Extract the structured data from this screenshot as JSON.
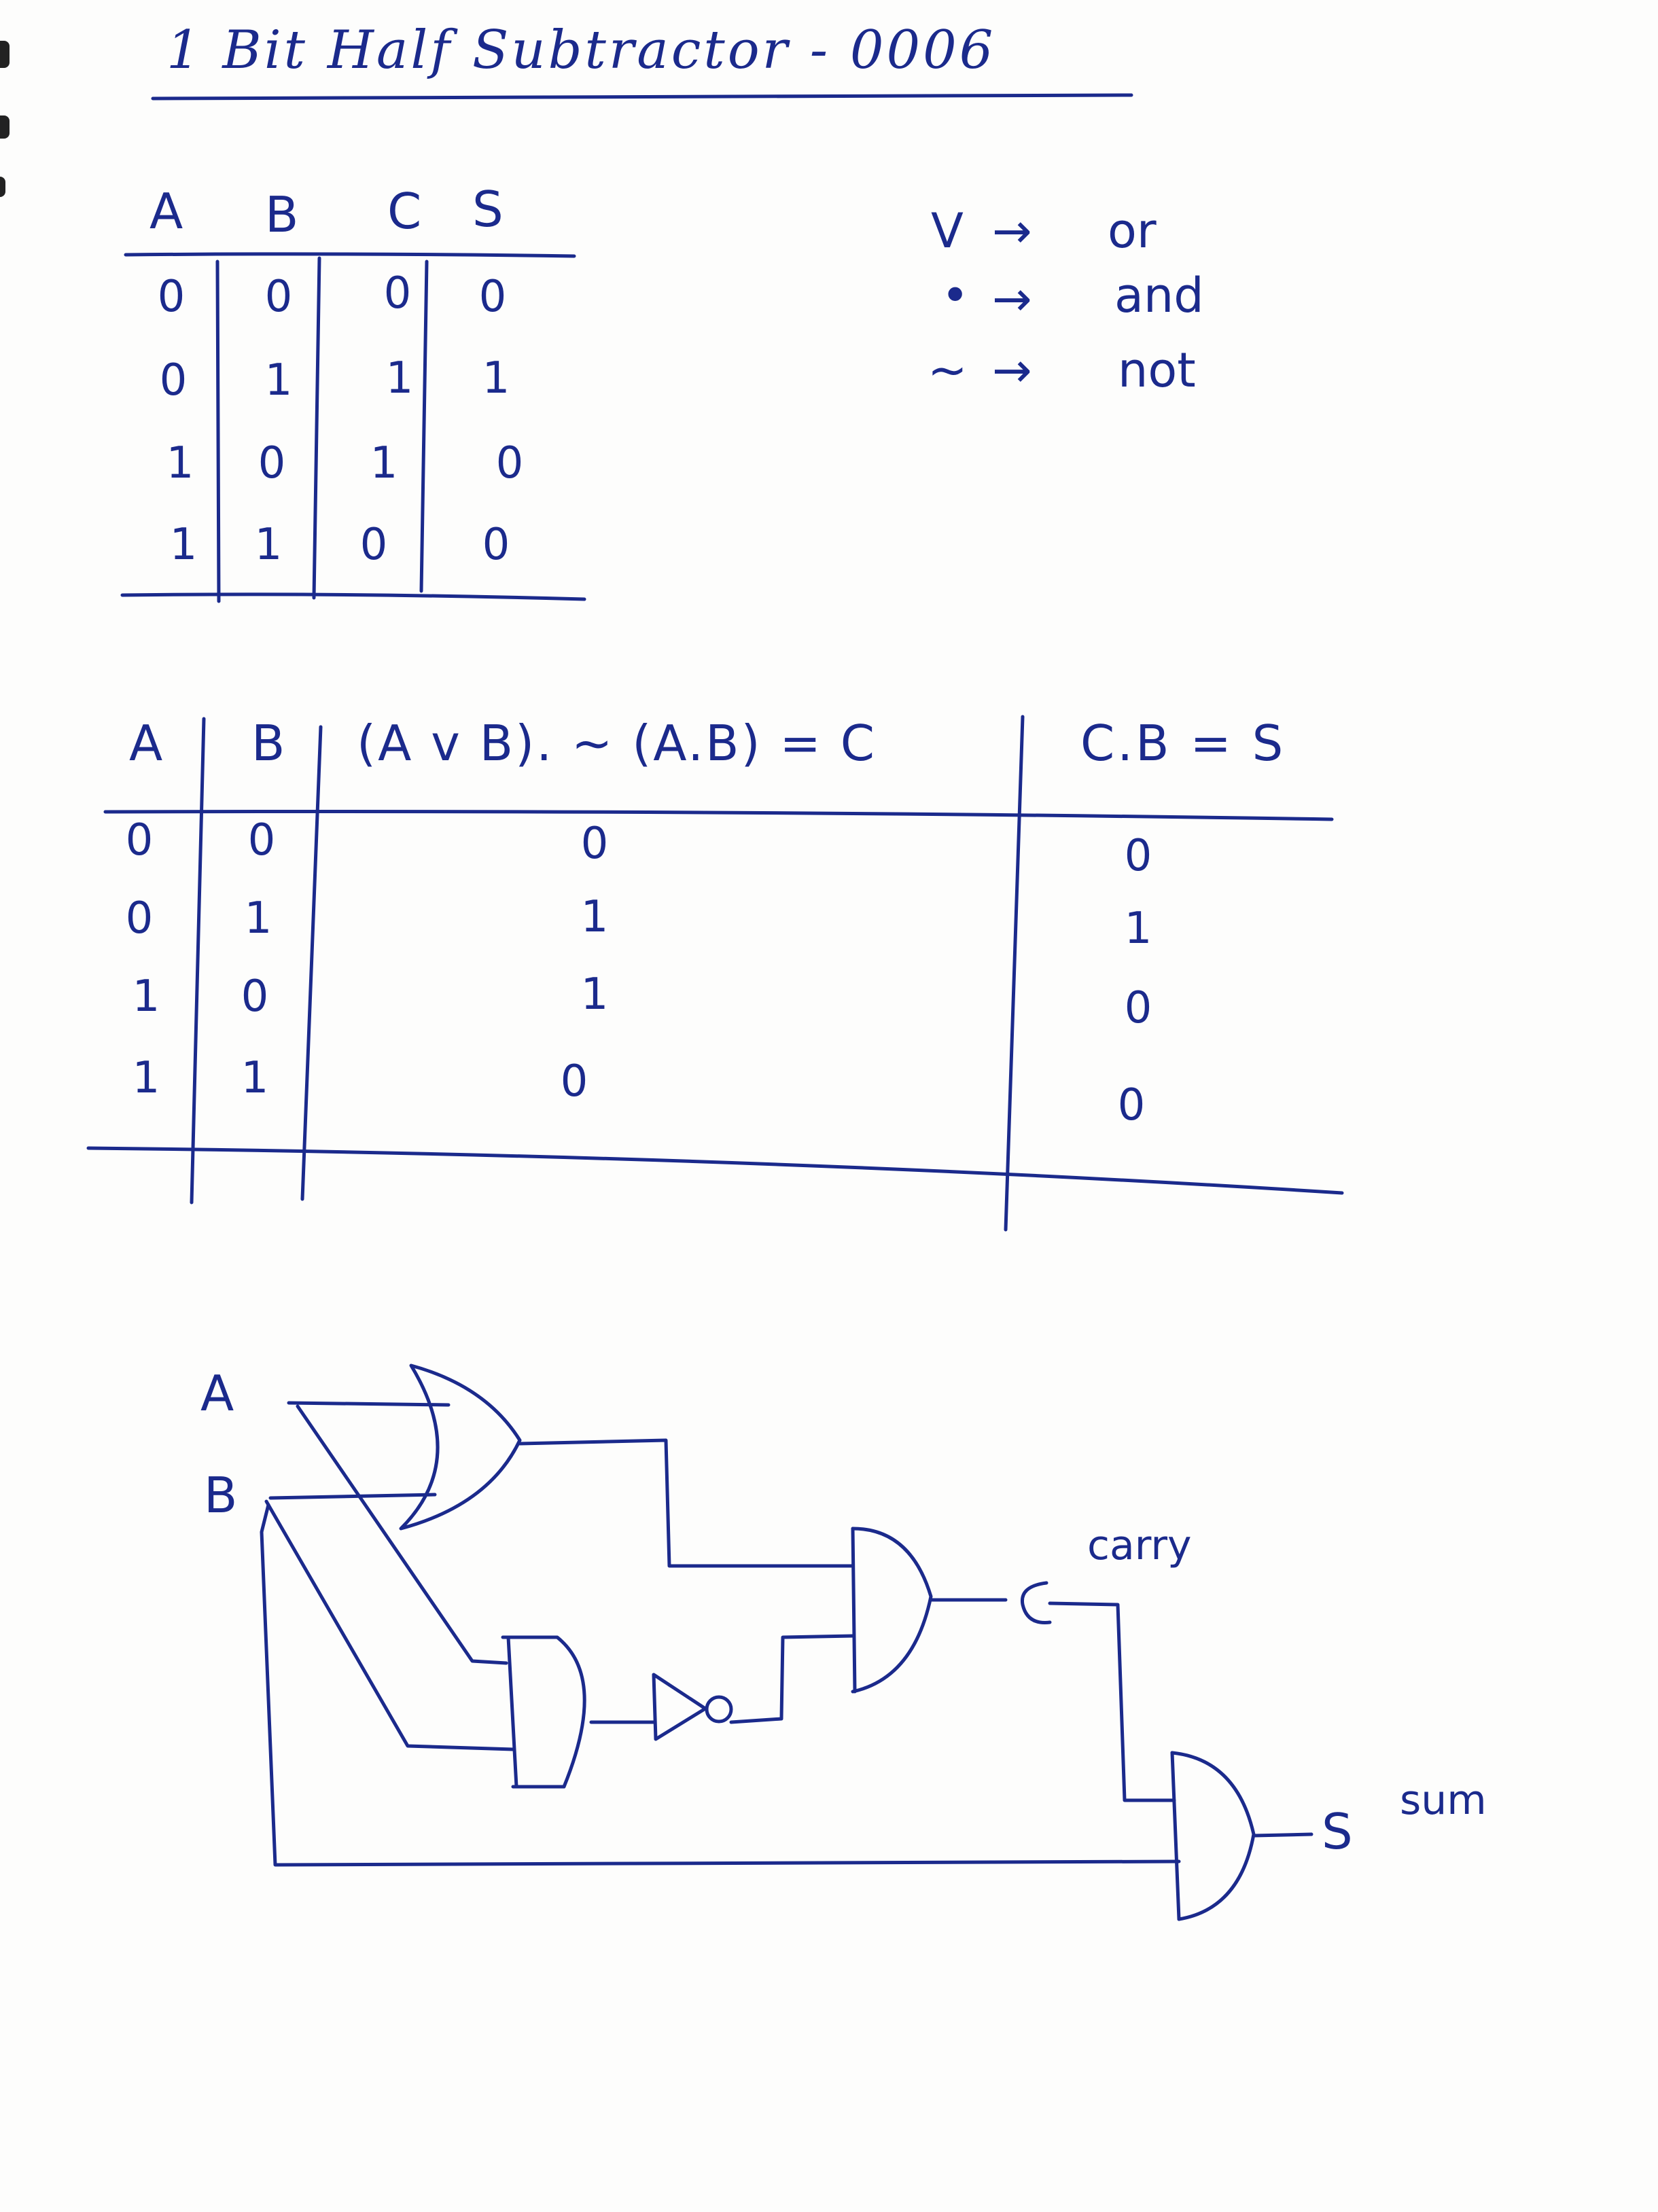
{
  "title": "1 Bit Half Subtractor - 0006",
  "truth_table": {
    "headers": [
      "A",
      "B",
      "C",
      "S"
    ],
    "rows": [
      [
        "0",
        "0",
        "0",
        "0"
      ],
      [
        "0",
        "1",
        "1",
        "1"
      ],
      [
        "1",
        "0",
        "1",
        "0"
      ],
      [
        "1",
        "1",
        "0",
        "0"
      ]
    ]
  },
  "legend": [
    {
      "symbol": "V",
      "arrow": "→",
      "meaning": "or"
    },
    {
      "symbol": "•",
      "arrow": "→",
      "meaning": "and"
    },
    {
      "symbol": "~",
      "arrow": "→",
      "meaning": "not"
    }
  ],
  "derivation_table": {
    "headers": [
      "A",
      "B",
      "(A v B). ~ (A.B) = C",
      "C.B = S"
    ],
    "rows": [
      [
        "0",
        "0",
        "0",
        "0"
      ],
      [
        "0",
        "1",
        "1",
        "1"
      ],
      [
        "1",
        "0",
        "1",
        "0"
      ],
      [
        "1",
        "1",
        "0",
        "0"
      ]
    ]
  },
  "circuit": {
    "input_a": "A",
    "input_b": "B",
    "carry_node": "C",
    "carry_label": "carry",
    "sum_node": "S",
    "sum_label": "sum"
  },
  "colors": {
    "ink": "#1b2a8c",
    "paper": "#fdfdfc"
  }
}
